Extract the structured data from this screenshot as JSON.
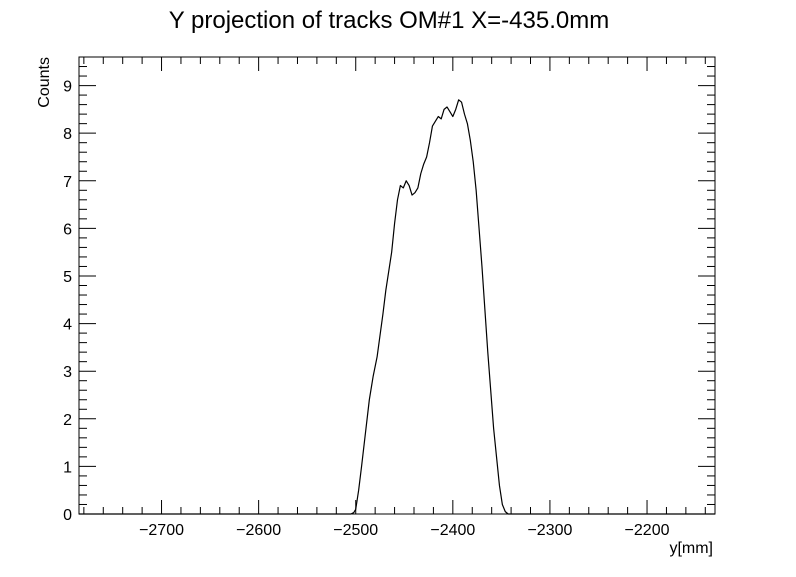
{
  "chart_data": {
    "type": "line",
    "title": "Y projection of tracks OM#1 X=-435.0mm",
    "xlabel": "y[mm]",
    "ylabel": "Counts",
    "xlim": [
      -2785,
      -2130
    ],
    "ylim": [
      0,
      9.6
    ],
    "x_ticks": [
      -2700,
      -2600,
      -2500,
      -2400,
      -2300,
      -2200
    ],
    "x_tick_labels": [
      "−2700",
      "−2600",
      "−2500",
      "−2400",
      "−2300",
      "−2200"
    ],
    "y_ticks": [
      0,
      1,
      2,
      3,
      4,
      5,
      6,
      7,
      8,
      9
    ],
    "y_tick_labels": [
      "0",
      "1",
      "2",
      "3",
      "4",
      "5",
      "6",
      "7",
      "8",
      "9"
    ],
    "grid": false,
    "legend": "none",
    "series": [
      {
        "color": "#000000",
        "x": [
          -2785,
          -2505,
          -2502,
          -2500,
          -2497,
          -2494,
          -2490,
          -2486,
          -2482,
          -2478,
          -2475,
          -2472,
          -2469,
          -2466,
          -2463,
          -2460,
          -2457,
          -2454,
          -2451,
          -2448,
          -2445,
          -2442,
          -2439,
          -2436,
          -2433,
          -2430,
          -2427,
          -2424,
          -2421,
          -2418,
          -2415,
          -2412,
          -2409,
          -2406,
          -2403,
          -2400,
          -2397,
          -2394,
          -2391,
          -2388,
          -2385,
          -2382,
          -2379,
          -2376,
          -2373,
          -2370,
          -2367,
          -2364,
          -2361,
          -2358,
          -2355,
          -2352,
          -2349,
          -2346,
          -2343,
          -2340,
          -2337,
          -2334,
          -2331,
          -2328,
          -2325,
          -2322,
          -2319,
          -2316,
          -2313,
          -2310,
          -2307,
          -2304,
          -2300,
          -2130
        ],
        "y": [
          0,
          0,
          0.03,
          0.1,
          0.5,
          1.0,
          1.7,
          2.4,
          2.9,
          3.3,
          3.75,
          4.2,
          4.7,
          5.1,
          5.5,
          6.1,
          6.6,
          6.9,
          6.85,
          7.0,
          6.9,
          6.7,
          6.75,
          6.85,
          7.15,
          7.35,
          7.5,
          7.8,
          8.15,
          8.25,
          8.35,
          8.3,
          8.5,
          8.55,
          8.45,
          8.35,
          8.5,
          8.7,
          8.65,
          8.4,
          8.2,
          7.85,
          7.4,
          6.8,
          6.0,
          5.2,
          4.3,
          3.4,
          2.6,
          1.8,
          1.2,
          0.6,
          0.2,
          0.05,
          0,
          0,
          0,
          0,
          0,
          0,
          0,
          0,
          0,
          0,
          0,
          0,
          0,
          0,
          0,
          0
        ]
      }
    ]
  }
}
